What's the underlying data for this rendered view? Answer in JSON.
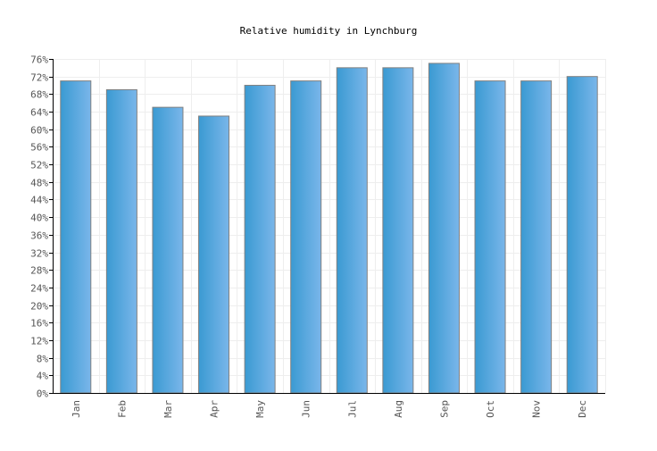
{
  "chart_data": {
    "type": "bar",
    "title": "Relative humidity in Lynchburg",
    "xlabel": "",
    "ylabel": "",
    "categories": [
      "Jan",
      "Feb",
      "Mar",
      "Apr",
      "May",
      "Jun",
      "Jul",
      "Aug",
      "Sep",
      "Oct",
      "Nov",
      "Dec"
    ],
    "values": [
      71,
      69,
      65,
      63,
      70,
      71,
      74,
      74,
      75,
      71,
      71,
      72
    ],
    "ylim": [
      0,
      76
    ],
    "ytick_step": 4,
    "ytick_suffix": "%",
    "grid": true,
    "bar_color_start": "#3a9ad2",
    "bar_color_end": "#7ab6ea",
    "bar_border": "#808080"
  }
}
